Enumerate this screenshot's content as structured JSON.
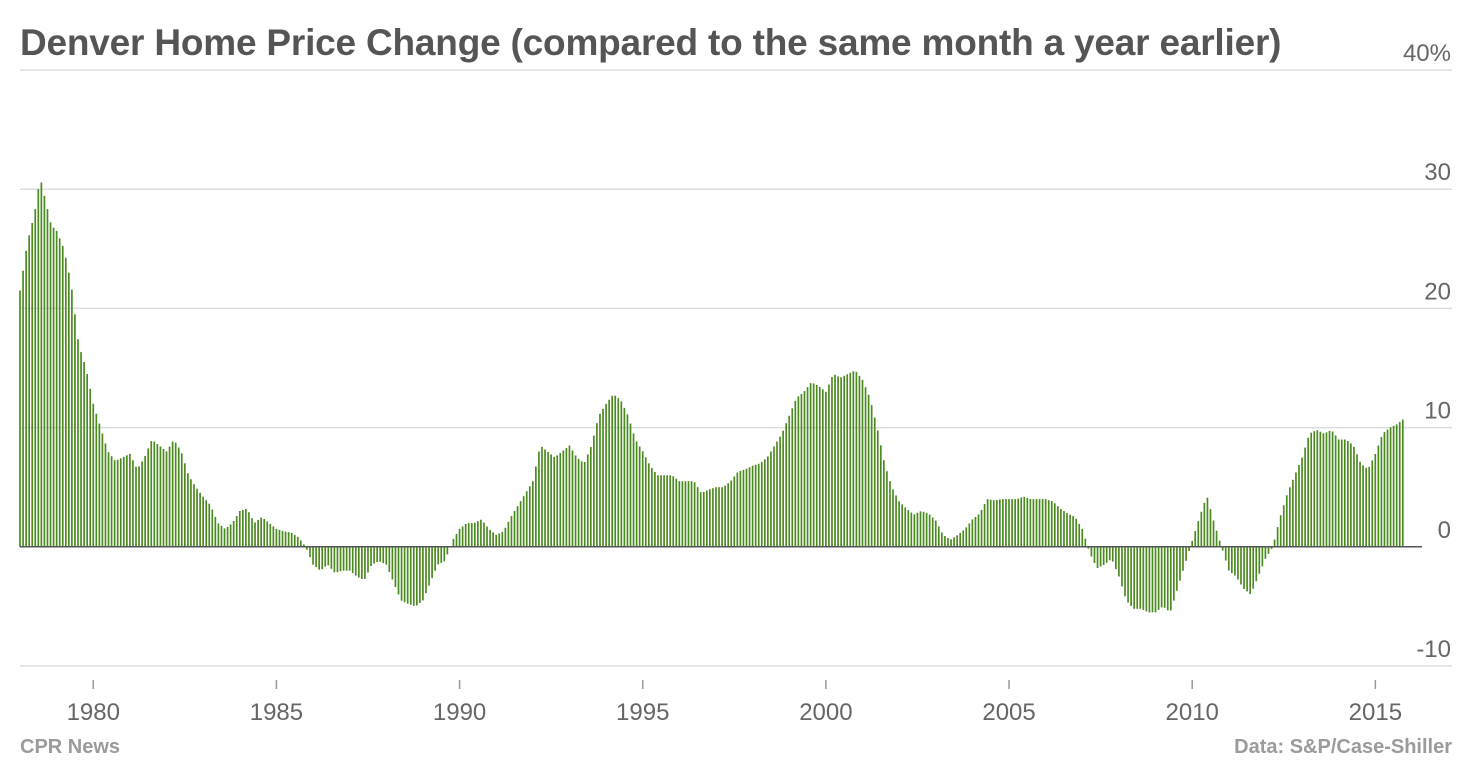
{
  "page": {
    "title": "Denver Home Price Change (compared to the same month a year earlier)",
    "source_left": "CPR News",
    "source_right": "Data: S&P/Case-Shiller"
  },
  "colors": {
    "bar": "#4a8a1f",
    "bar_edge": "#2f6310",
    "grid": "#dddddd",
    "zero": "#555555",
    "text": "#666666"
  },
  "chart_data": {
    "type": "bar",
    "title": "Denver Home Price Change (compared to the same month a year earlier)",
    "ylabel": "",
    "xlabel": "",
    "ylim": [
      -10,
      40
    ],
    "y_ticks": [
      -10,
      0,
      10,
      20,
      30,
      40
    ],
    "y_tick_labels": [
      "-10",
      "0",
      "10",
      "20",
      "30",
      "40%"
    ],
    "x_ticks": [
      1980,
      1985,
      1990,
      1995,
      2000,
      2005,
      2010,
      2015
    ],
    "x_range": [
      1978.0,
      2016.0
    ],
    "grid": true,
    "bar_period": "quarterly",
    "anchors": [
      [
        1978.0,
        21.5
      ],
      [
        1978.2,
        25.5
      ],
      [
        1978.4,
        28.0
      ],
      [
        1978.55,
        31.0
      ],
      [
        1978.7,
        29.0
      ],
      [
        1978.85,
        27.0
      ],
      [
        1979.0,
        26.5
      ],
      [
        1979.2,
        25.0
      ],
      [
        1979.4,
        22.0
      ],
      [
        1979.6,
        17.0
      ],
      [
        1979.8,
        15.0
      ],
      [
        1980.0,
        12.0
      ],
      [
        1980.2,
        10.0
      ],
      [
        1980.4,
        8.0
      ],
      [
        1980.6,
        7.2
      ],
      [
        1980.8,
        7.5
      ],
      [
        1981.0,
        7.8
      ],
      [
        1981.2,
        6.5
      ],
      [
        1981.4,
        7.5
      ],
      [
        1981.6,
        9.0
      ],
      [
        1981.8,
        8.5
      ],
      [
        1982.0,
        8.0
      ],
      [
        1982.2,
        9.0
      ],
      [
        1982.4,
        8.0
      ],
      [
        1982.6,
        6.0
      ],
      [
        1982.8,
        5.0
      ],
      [
        1983.0,
        4.2
      ],
      [
        1983.2,
        3.5
      ],
      [
        1983.4,
        2.0
      ],
      [
        1983.6,
        1.5
      ],
      [
        1983.8,
        2.0
      ],
      [
        1984.0,
        3.0
      ],
      [
        1984.2,
        3.2
      ],
      [
        1984.4,
        2.0
      ],
      [
        1984.6,
        2.5
      ],
      [
        1984.8,
        2.0
      ],
      [
        1985.0,
        1.5
      ],
      [
        1985.2,
        1.3
      ],
      [
        1985.4,
        1.2
      ],
      [
        1985.6,
        0.8
      ],
      [
        1985.8,
        0.0
      ],
      [
        1986.0,
        -1.5
      ],
      [
        1986.2,
        -2.0
      ],
      [
        1986.4,
        -1.5
      ],
      [
        1986.6,
        -2.2
      ],
      [
        1986.8,
        -2.0
      ],
      [
        1987.0,
        -2.0
      ],
      [
        1987.2,
        -2.5
      ],
      [
        1987.4,
        -2.8
      ],
      [
        1987.6,
        -1.5
      ],
      [
        1987.8,
        -1.2
      ],
      [
        1988.0,
        -1.5
      ],
      [
        1988.2,
        -3.0
      ],
      [
        1988.4,
        -4.5
      ],
      [
        1988.6,
        -4.8
      ],
      [
        1988.8,
        -5.0
      ],
      [
        1989.0,
        -4.5
      ],
      [
        1989.2,
        -3.0
      ],
      [
        1989.4,
        -1.5
      ],
      [
        1989.6,
        -1.2
      ],
      [
        1989.8,
        0.5
      ],
      [
        1990.0,
        1.5
      ],
      [
        1990.2,
        2.0
      ],
      [
        1990.4,
        2.0
      ],
      [
        1990.6,
        2.3
      ],
      [
        1990.8,
        1.5
      ],
      [
        1991.0,
        1.0
      ],
      [
        1991.2,
        1.3
      ],
      [
        1991.4,
        2.5
      ],
      [
        1991.6,
        3.5
      ],
      [
        1991.8,
        4.5
      ],
      [
        1992.0,
        5.5
      ],
      [
        1992.2,
        8.5
      ],
      [
        1992.4,
        8.0
      ],
      [
        1992.6,
        7.5
      ],
      [
        1992.8,
        8.0
      ],
      [
        1993.0,
        8.5
      ],
      [
        1993.2,
        7.5
      ],
      [
        1993.4,
        7.0
      ],
      [
        1993.6,
        8.5
      ],
      [
        1993.8,
        11.0
      ],
      [
        1994.0,
        12.0
      ],
      [
        1994.2,
        12.8
      ],
      [
        1994.4,
        12.3
      ],
      [
        1994.6,
        11.0
      ],
      [
        1994.8,
        9.0
      ],
      [
        1995.0,
        8.0
      ],
      [
        1995.2,
        6.8
      ],
      [
        1995.4,
        6.0
      ],
      [
        1995.6,
        6.0
      ],
      [
        1995.8,
        6.0
      ],
      [
        1996.0,
        5.5
      ],
      [
        1996.2,
        5.5
      ],
      [
        1996.4,
        5.5
      ],
      [
        1996.6,
        4.5
      ],
      [
        1996.8,
        4.8
      ],
      [
        1997.0,
        5.0
      ],
      [
        1997.2,
        5.0
      ],
      [
        1997.4,
        5.5
      ],
      [
        1997.6,
        6.3
      ],
      [
        1997.8,
        6.5
      ],
      [
        1998.0,
        6.8
      ],
      [
        1998.2,
        7.0
      ],
      [
        1998.4,
        7.5
      ],
      [
        1998.6,
        8.5
      ],
      [
        1998.8,
        9.5
      ],
      [
        1999.0,
        11.0
      ],
      [
        1999.2,
        12.5
      ],
      [
        1999.4,
        13.0
      ],
      [
        1999.6,
        13.8
      ],
      [
        1999.8,
        13.5
      ],
      [
        2000.0,
        13.0
      ],
      [
        2000.2,
        14.5
      ],
      [
        2000.4,
        14.2
      ],
      [
        2000.6,
        14.5
      ],
      [
        2000.8,
        14.8
      ],
      [
        2001.0,
        14.0
      ],
      [
        2001.2,
        12.5
      ],
      [
        2001.4,
        10.0
      ],
      [
        2001.6,
        7.0
      ],
      [
        2001.8,
        5.0
      ],
      [
        2002.0,
        3.8
      ],
      [
        2002.2,
        3.2
      ],
      [
        2002.4,
        2.7
      ],
      [
        2002.6,
        3.0
      ],
      [
        2002.8,
        2.8
      ],
      [
        2003.0,
        2.2
      ],
      [
        2003.2,
        1.0
      ],
      [
        2003.4,
        0.6
      ],
      [
        2003.6,
        1.0
      ],
      [
        2003.8,
        1.5
      ],
      [
        2004.0,
        2.3
      ],
      [
        2004.2,
        2.8
      ],
      [
        2004.4,
        4.0
      ],
      [
        2004.6,
        3.9
      ],
      [
        2004.8,
        4.0
      ],
      [
        2005.0,
        4.0
      ],
      [
        2005.2,
        4.0
      ],
      [
        2005.4,
        4.2
      ],
      [
        2005.6,
        4.0
      ],
      [
        2005.8,
        4.0
      ],
      [
        2006.0,
        4.0
      ],
      [
        2006.2,
        3.8
      ],
      [
        2006.4,
        3.2
      ],
      [
        2006.6,
        2.8
      ],
      [
        2006.8,
        2.5
      ],
      [
        2007.0,
        1.5
      ],
      [
        2007.2,
        -0.5
      ],
      [
        2007.4,
        -1.8
      ],
      [
        2007.6,
        -1.5
      ],
      [
        2007.8,
        -1.0
      ],
      [
        2008.0,
        -2.5
      ],
      [
        2008.2,
        -4.5
      ],
      [
        2008.4,
        -5.2
      ],
      [
        2008.6,
        -5.2
      ],
      [
        2008.8,
        -5.5
      ],
      [
        2009.0,
        -5.5
      ],
      [
        2009.2,
        -5.0
      ],
      [
        2009.4,
        -5.5
      ],
      [
        2009.6,
        -3.5
      ],
      [
        2009.8,
        -1.5
      ],
      [
        2010.0,
        0.5
      ],
      [
        2010.2,
        2.5
      ],
      [
        2010.4,
        4.3
      ],
      [
        2010.6,
        2.0
      ],
      [
        2010.8,
        0.0
      ],
      [
        2011.0,
        -2.0
      ],
      [
        2011.2,
        -2.5
      ],
      [
        2011.4,
        -3.5
      ],
      [
        2011.6,
        -4.0
      ],
      [
        2011.8,
        -2.5
      ],
      [
        2012.0,
        -1.0
      ],
      [
        2012.2,
        0.0
      ],
      [
        2012.4,
        2.5
      ],
      [
        2012.6,
        4.5
      ],
      [
        2012.8,
        6.0
      ],
      [
        2013.0,
        7.5
      ],
      [
        2013.2,
        9.5
      ],
      [
        2013.4,
        9.8
      ],
      [
        2013.6,
        9.5
      ],
      [
        2013.8,
        9.8
      ],
      [
        2014.0,
        9.0
      ],
      [
        2014.2,
        9.0
      ],
      [
        2014.4,
        8.5
      ],
      [
        2014.6,
        7.0
      ],
      [
        2014.8,
        6.5
      ],
      [
        2015.0,
        7.8
      ],
      [
        2015.2,
        9.5
      ],
      [
        2015.4,
        10.0
      ],
      [
        2015.6,
        10.3
      ],
      [
        2015.8,
        10.8
      ]
    ]
  }
}
